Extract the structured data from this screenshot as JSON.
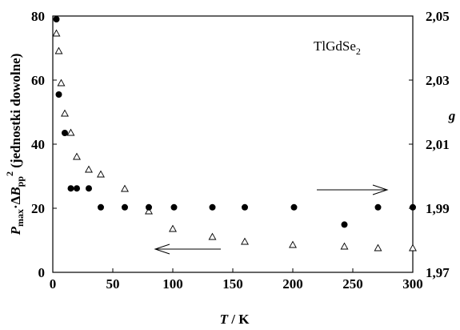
{
  "chart_data": {
    "type": "scatter",
    "annotation_main": "TlGdSe",
    "annotation_sub": "2",
    "xlabel_italic": "T",
    "xlabel_rest": " / K",
    "ylabel_P": "P",
    "ylabel_max": "max",
    "ylabel_dot": "·",
    "ylabel_delta": "Δ",
    "ylabel_B": "B",
    "ylabel_pp": "pp",
    "ylabel_exp": "2",
    "ylabel_rest": " (jednostki dowolne)",
    "y2label": "g",
    "xlim": [
      0,
      300
    ],
    "ylim": [
      0,
      80
    ],
    "y2lim": [
      1.97,
      2.05
    ],
    "xticks": [
      "0",
      "50",
      "100",
      "150",
      "200",
      "250",
      "300"
    ],
    "yticks": [
      "0",
      "20",
      "40",
      "60",
      "80"
    ],
    "y2ticks": [
      "1,97",
      "1,99",
      "2,01",
      "2,03",
      "2,05"
    ],
    "grid": false,
    "legend": "none",
    "series": [
      {
        "marker": "triangle-open",
        "axis": "left",
        "x": [
          3,
          5,
          7,
          10,
          15,
          20,
          30,
          40,
          60,
          80,
          100,
          133,
          160,
          200,
          243,
          271,
          300
        ],
        "y": [
          74.5,
          69,
          59,
          49.5,
          43.5,
          36,
          32,
          30.5,
          26,
          19,
          13.5,
          11,
          9.5,
          8.5,
          8,
          7.5,
          7.5
        ]
      },
      {
        "marker": "circle-filled",
        "axis": "right",
        "x": [
          3,
          5,
          10,
          15,
          20,
          30,
          40,
          60,
          80,
          101,
          133,
          160,
          201,
          243,
          271,
          300
        ],
        "y": [
          2.049,
          2.0255,
          2.0135,
          1.9962,
          1.9962,
          1.9962,
          1.9903,
          1.9903,
          1.9903,
          1.9903,
          1.9903,
          1.9903,
          1.9903,
          1.9849,
          1.9903,
          1.9903
        ]
      }
    ]
  }
}
